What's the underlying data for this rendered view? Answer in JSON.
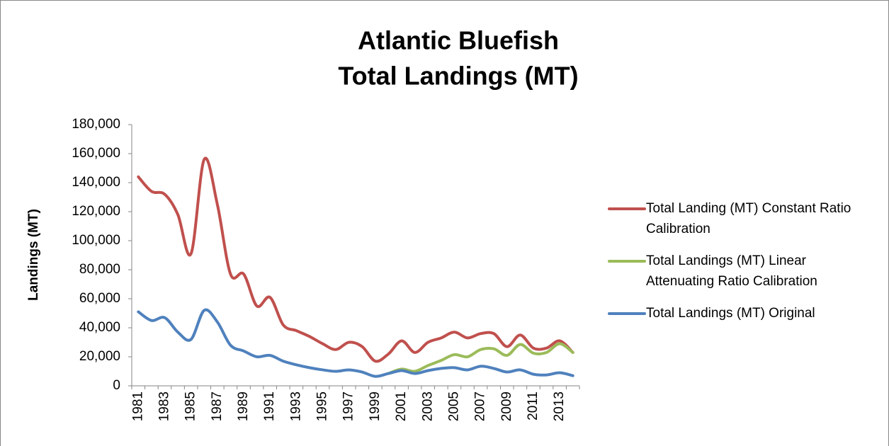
{
  "chart_data": {
    "type": "line",
    "title": [
      "Atlantic Bluefish",
      "Total Landings (MT)"
    ],
    "y_label": "Landings (MT)",
    "categories": [
      "1981",
      null,
      "1983",
      null,
      "1985",
      null,
      "1987",
      null,
      "1989",
      null,
      "1991",
      null,
      "1993",
      null,
      "1995",
      null,
      "1997",
      null,
      "1999",
      null,
      "2001",
      null,
      "2003",
      null,
      "2005",
      null,
      "2007",
      null,
      "2009",
      null,
      "2011",
      null,
      "2013",
      null
    ],
    "series": [
      {
        "name": "Total Landing (MT) Constant Ratio Calibration",
        "color": "#c0504d",
        "values": [
          144000,
          134000,
          132000,
          118000,
          91000,
          156000,
          125000,
          77000,
          77000,
          55000,
          61000,
          42000,
          38000,
          34000,
          29000,
          25000,
          30000,
          27000,
          17000,
          22000,
          31000,
          23000,
          30000,
          33000,
          37000,
          33000,
          36000,
          36000,
          27000,
          35000,
          26000,
          26000,
          31000,
          23000
        ]
      },
      {
        "name": "Total Landings (MT) Linear Attenuating Ratio Calibration",
        "color": "#9bbb59",
        "values": [
          null,
          null,
          null,
          null,
          null,
          null,
          null,
          null,
          null,
          null,
          null,
          null,
          null,
          null,
          null,
          null,
          null,
          null,
          null,
          8500,
          11500,
          10000,
          14000,
          17500,
          21500,
          20000,
          25000,
          25500,
          21000,
          28500,
          22500,
          23000,
          29000,
          23000
        ]
      },
      {
        "name": "Total Landings (MT) Original",
        "color": "#4f81bd",
        "values": [
          51000,
          45000,
          47000,
          37000,
          32000,
          52000,
          44000,
          28000,
          24000,
          20000,
          21000,
          17000,
          14500,
          12500,
          11000,
          10000,
          11000,
          9500,
          6500,
          8500,
          10500,
          8500,
          10500,
          12000,
          12500,
          11000,
          13500,
          12000,
          9500,
          11000,
          8000,
          7500,
          9000,
          7000
        ]
      }
    ],
    "ylim": [
      0,
      180000
    ],
    "yticks": [
      0,
      {
        "value": 20000,
        "label": "20,000"
      },
      {
        "value": 40000,
        "label": "40,000"
      },
      {
        "value": 60000,
        "label": "60,000"
      },
      {
        "value": 80000,
        "label": "80,000"
      },
      {
        "value": 100000,
        "label": "100,000"
      },
      {
        "value": 120000,
        "label": "120,000"
      },
      {
        "value": 140000,
        "label": "140,000"
      },
      {
        "value": 160000,
        "label": "160,000"
      },
      {
        "value": 180000,
        "label": "180,000"
      }
    ],
    "grid": false,
    "legend": "right"
  }
}
